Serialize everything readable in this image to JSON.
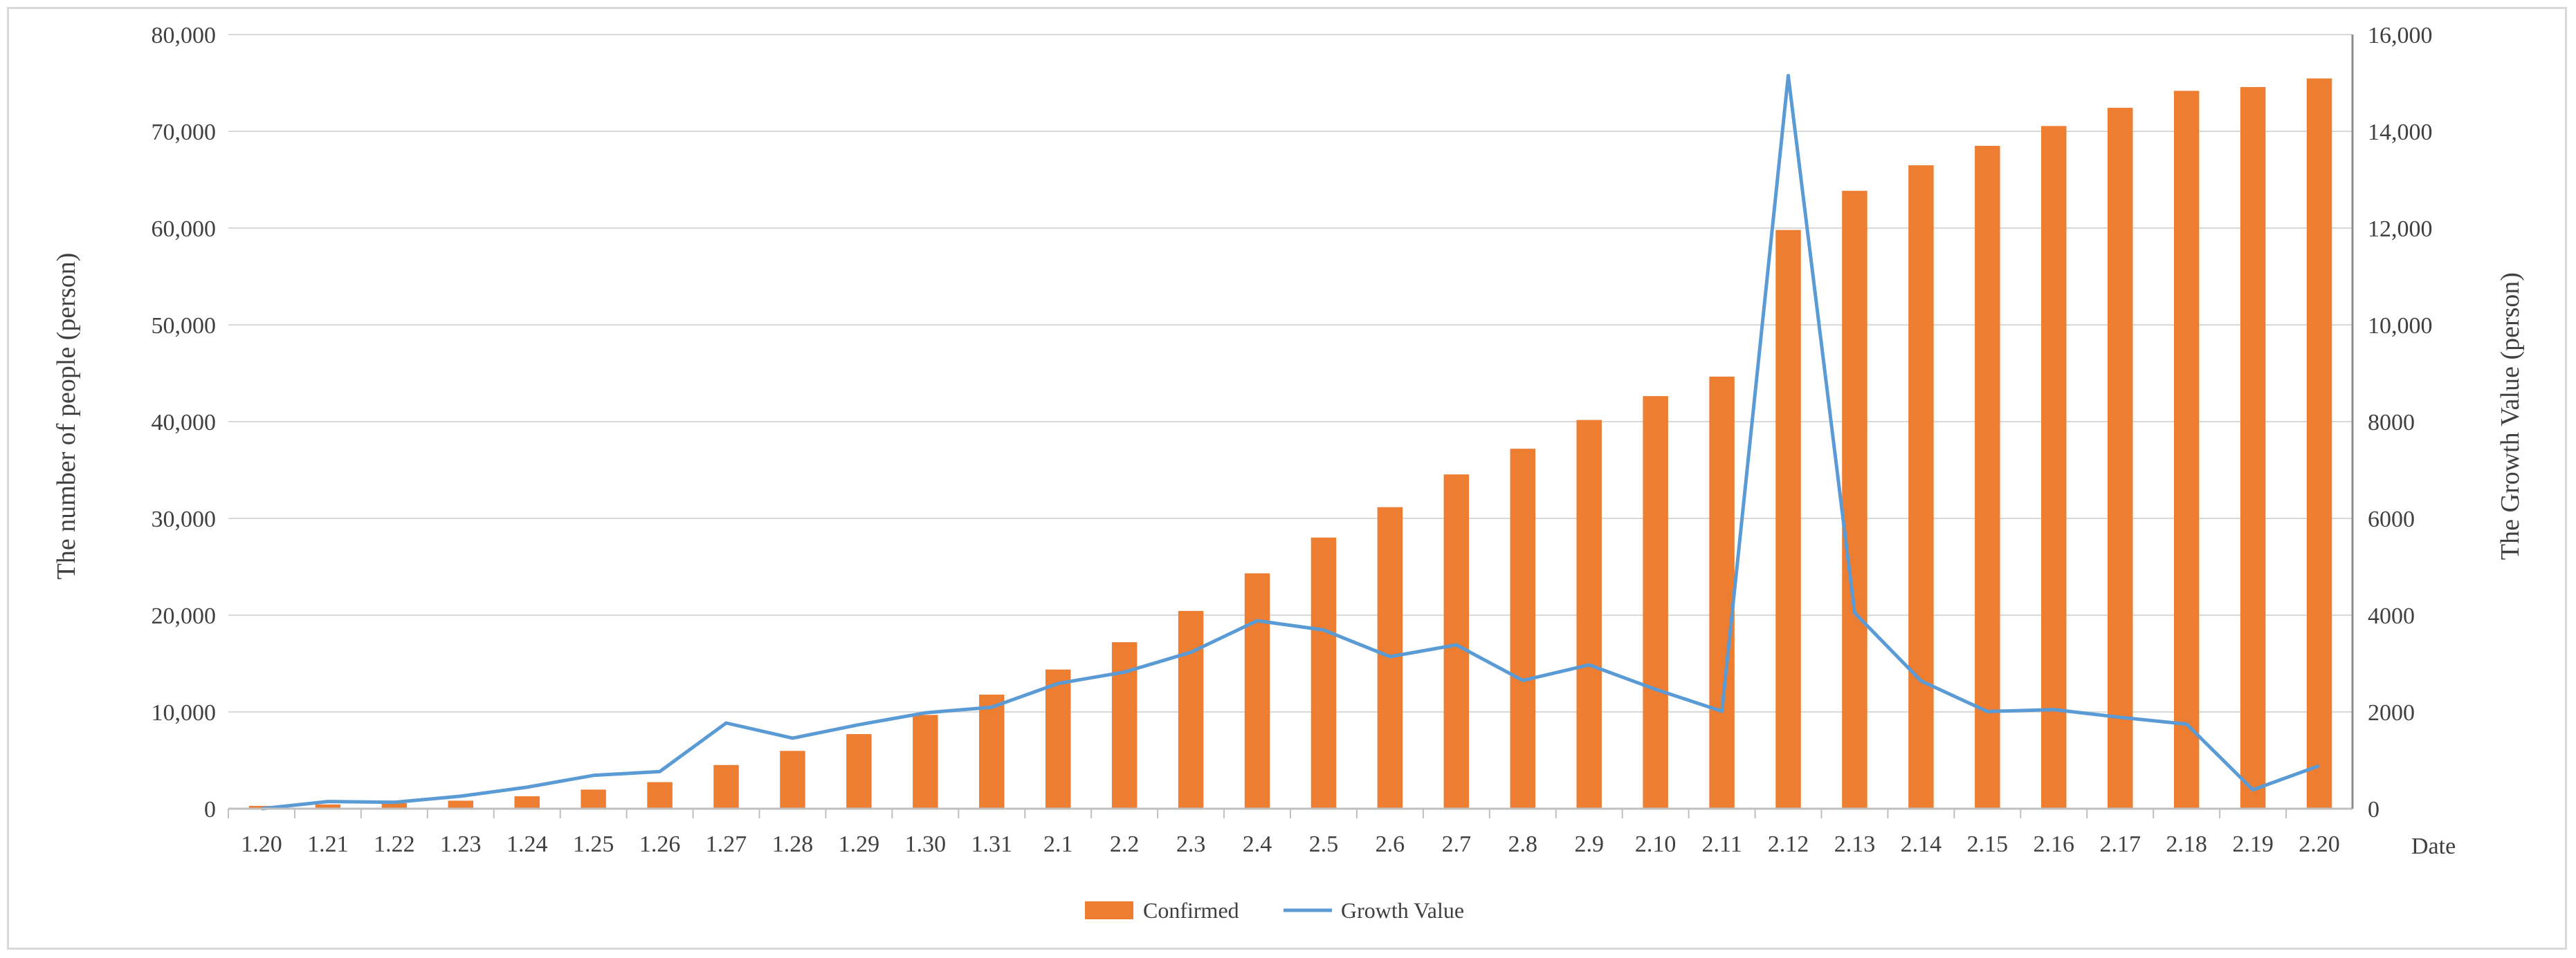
{
  "chart_data": {
    "type": "bar",
    "categories": [
      "1.20",
      "1.21",
      "1.22",
      "1.23",
      "1.24",
      "1.25",
      "1.26",
      "1.27",
      "1.28",
      "1.29",
      "1.30",
      "1.31",
      "2.1",
      "2.2",
      "2.3",
      "2.4",
      "2.5",
      "2.6",
      "2.7",
      "2.8",
      "2.9",
      "2.10",
      "2.11",
      "2.12",
      "2.13",
      "2.14",
      "2.15",
      "2.16",
      "2.17",
      "2.18",
      "2.19",
      "2.20"
    ],
    "series": [
      {
        "name": "Confirmed",
        "kind": "bar",
        "axis": "left",
        "color": "#ed7d31",
        "values": [
          291,
          440,
          571,
          830,
          1287,
          1975,
          2744,
          4515,
          5974,
          7711,
          9692,
          11791,
          14380,
          17205,
          20438,
          24324,
          28018,
          31161,
          34546,
          37198,
          40171,
          42638,
          44653,
          59804,
          63851,
          66492,
          68500,
          70548,
          72436,
          74185,
          74576,
          75465
        ]
      },
      {
        "name": "Growth Value",
        "kind": "line",
        "axis": "right",
        "color": "#5b9bd5",
        "values": [
          0,
          149,
          131,
          259,
          444,
          688,
          769,
          1771,
          1459,
          1737,
          1981,
          2099,
          2589,
          2825,
          3233,
          3886,
          3694,
          3143,
          3385,
          2652,
          2973,
          2467,
          2015,
          15151,
          4047,
          2641,
          2008,
          2048,
          1888,
          1749,
          391,
          889
        ]
      }
    ],
    "y_left": {
      "label": "The number of people (person)",
      "range": [
        0,
        80000
      ],
      "ticks": [
        "0",
        "10,000",
        "20,000",
        "30,000",
        "40,000",
        "50,000",
        "60,000",
        "70,000",
        "80,000"
      ]
    },
    "y_right": {
      "label": "The Growth Value (person)",
      "range": [
        0,
        16000
      ],
      "ticks": [
        "0",
        "2000",
        "4000",
        "6000",
        "8000",
        "10,000",
        "12,000",
        "14,000",
        "16,000"
      ]
    },
    "x_label": "Date",
    "legend_position": "bottom",
    "grid": true
  }
}
